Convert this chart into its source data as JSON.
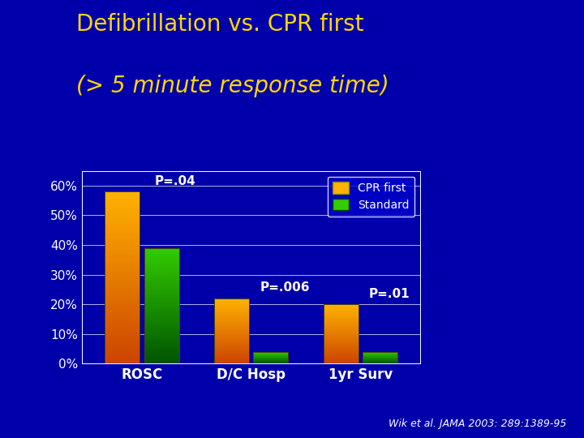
{
  "title_line1": "Defibrillation vs. CPR first",
  "title_line2": "(> 5 minute response time)",
  "categories": [
    "ROSC",
    "D/C Hosp",
    "1yr Surv"
  ],
  "cpr_first_values": [
    58,
    22,
    20
  ],
  "standard_values": [
    39,
    4,
    4
  ],
  "p_values": [
    "P=.04",
    "P=.006",
    "P=.01"
  ],
  "ylim": [
    0,
    65
  ],
  "yticks": [
    0,
    10,
    20,
    30,
    40,
    50,
    60
  ],
  "yticklabels": [
    "0%",
    "10%",
    "20%",
    "30%",
    "40%",
    "50%",
    "60%"
  ],
  "legend_labels": [
    "CPR first",
    "Standard"
  ],
  "cpr_color_top": "#FFB300",
  "cpr_color_bottom": "#CC4400",
  "std_color_top": "#33CC00",
  "std_color_bottom": "#005500",
  "bg_color": "#0000AA",
  "text_color_title": "#FFD700",
  "text_color_axis": "#FFFFFF",
  "text_color_pval": "#FFFFFF",
  "annotation_text": "Wik et al. JAMA 2003: 289:1389-95",
  "bar_width": 0.32,
  "title_fontsize": 20,
  "axis_fontsize": 11,
  "pval_fontsize": 11,
  "legend_fontsize": 10
}
